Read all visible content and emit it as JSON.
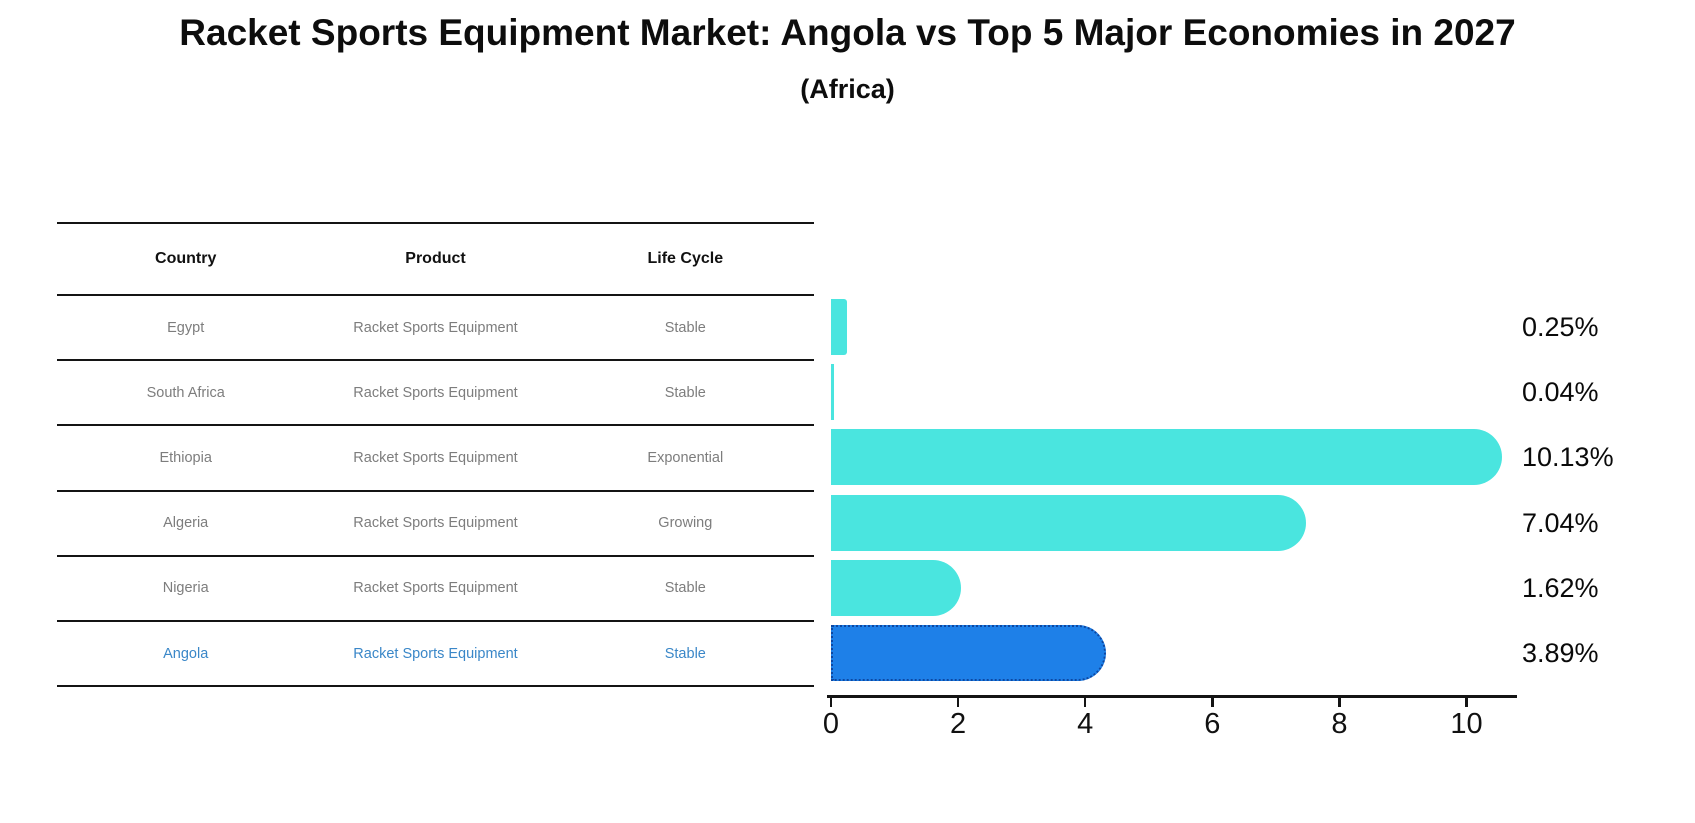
{
  "title": "Racket Sports Equipment Market: Angola vs Top 5 Major Economies in 2027",
  "subtitle": "(Africa)",
  "table": {
    "headers": [
      "Country",
      "Product",
      "Life Cycle"
    ],
    "rows": [
      {
        "country": "Egypt",
        "product": "Racket Sports Equipment",
        "life_cycle": "Stable",
        "highlight": false
      },
      {
        "country": "South Africa",
        "product": "Racket Sports Equipment",
        "life_cycle": "Stable",
        "highlight": false
      },
      {
        "country": "Ethiopia",
        "product": "Racket Sports Equipment",
        "life_cycle": "Exponential",
        "highlight": false
      },
      {
        "country": "Algeria",
        "product": "Racket Sports Equipment",
        "life_cycle": "Growing",
        "highlight": false
      },
      {
        "country": "Nigeria",
        "product": "Racket Sports Equipment",
        "life_cycle": "Stable",
        "highlight": false
      },
      {
        "country": "Angola",
        "product": "Racket Sports Equipment",
        "life_cycle": "Stable",
        "highlight": true
      }
    ]
  },
  "chart_data": {
    "type": "bar",
    "orientation": "horizontal",
    "title": "Racket Sports Equipment Market: Angola vs Top 5 Major Economies in 2027",
    "subtitle": "(Africa)",
    "categories": [
      "Egypt",
      "South Africa",
      "Ethiopia",
      "Algeria",
      "Nigeria",
      "Angola"
    ],
    "values": [
      0.25,
      0.04,
      10.13,
      7.04,
      1.62,
      3.89
    ],
    "value_labels": [
      "0.25%",
      "0.04%",
      "10.13%",
      "7.04%",
      "1.62%",
      "3.89%"
    ],
    "xticks": [
      "0",
      "2",
      "4",
      "6",
      "8",
      "10"
    ],
    "xlim": [
      0,
      10.8
    ],
    "grid": false,
    "legend": "none",
    "bar_color": "#4AE5DF",
    "highlight_index": 5,
    "highlight_color": "#1E80E8",
    "highlight_border_color": "#0D47A1",
    "row_text_color": "#7D7D7D",
    "highlight_text_color": "#3A87C8"
  }
}
